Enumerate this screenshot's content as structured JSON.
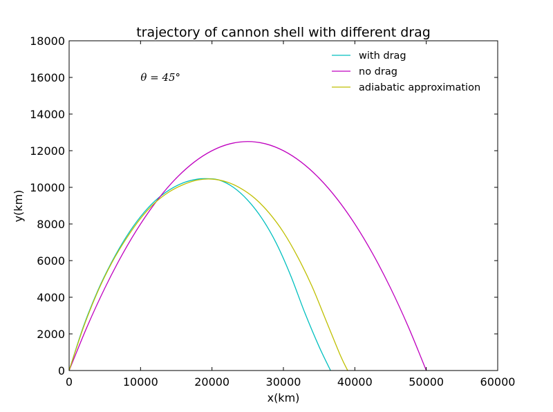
{
  "chart_data": {
    "type": "line",
    "title": "trajectory of cannon shell with different drag",
    "xlabel": "x(km)",
    "ylabel": "y(km)",
    "xlim": [
      0,
      60000
    ],
    "ylim": [
      0,
      18000
    ],
    "xticks": [
      0,
      10000,
      20000,
      30000,
      40000,
      50000,
      60000
    ],
    "yticks": [
      0,
      2000,
      4000,
      6000,
      8000,
      10000,
      12000,
      14000,
      16000,
      18000
    ],
    "annotation": {
      "text": "θ = 45°",
      "x": 10000,
      "y": 16000
    },
    "legend_position": "top-right",
    "grid": false,
    "series": [
      {
        "name": "with drag",
        "color": "#00bfbf",
        "x": [
          0,
          2000,
          4000,
          6000,
          8000,
          10000,
          12000,
          14000,
          16000,
          18000,
          19500,
          21000,
          23000,
          25000,
          27000,
          29000,
          31000,
          33000,
          35000,
          36600
        ],
        "y": [
          0,
          2400,
          4350,
          5950,
          7300,
          8400,
          9250,
          9850,
          10250,
          10450,
          10470,
          10400,
          10000,
          9300,
          8300,
          6950,
          5200,
          3150,
          1300,
          0
        ]
      },
      {
        "name": "no drag",
        "color": "#bf00bf",
        "x": [
          0,
          2500,
          5000,
          7500,
          10000,
          12500,
          15000,
          17500,
          20000,
          22500,
          25000,
          27500,
          30000,
          32500,
          35000,
          37500,
          40000,
          42500,
          45000,
          47500,
          50000
        ],
        "y": [
          0,
          2375,
          4500,
          6375,
          8000,
          9375,
          10500,
          11375,
          12000,
          12375,
          12500,
          12375,
          12000,
          11375,
          10500,
          9375,
          8000,
          6375,
          4500,
          2375,
          0
        ]
      },
      {
        "name": "adiabatic approximation",
        "color": "#bfbf00",
        "x": [
          0,
          2000,
          4000,
          6000,
          8000,
          10000,
          12000,
          14000,
          16000,
          18000,
          20000,
          22000,
          24000,
          26000,
          28000,
          30000,
          32000,
          34000,
          36000,
          38000,
          39000
        ],
        "y": [
          0,
          2350,
          4300,
          5900,
          7200,
          8300,
          9150,
          9750,
          10150,
          10400,
          10450,
          10300,
          9950,
          9400,
          8600,
          7550,
          6200,
          4600,
          2700,
          800,
          0
        ]
      }
    ]
  }
}
